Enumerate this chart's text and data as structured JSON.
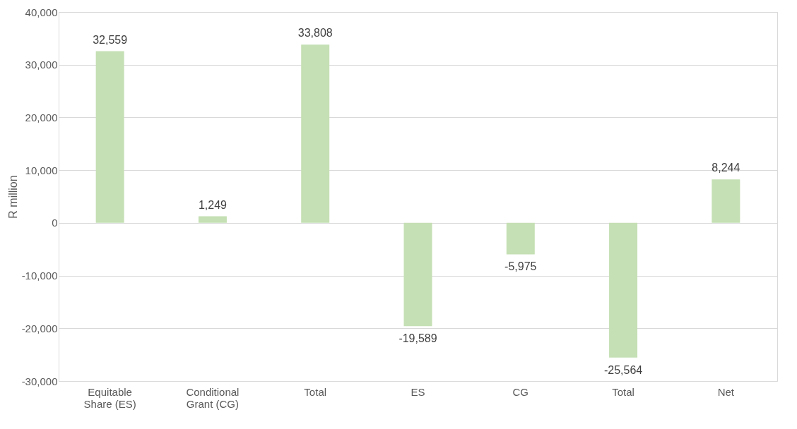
{
  "chart_data": {
    "type": "bar",
    "ylabel": "R million",
    "categories": [
      "Equitable Share (ES)",
      "Conditional Grant (CG)",
      "Total",
      "ES",
      "CG",
      "Total",
      "Net"
    ],
    "values": [
      32559,
      1249,
      33808,
      -19589,
      -5975,
      -25564,
      8244
    ],
    "value_labels": [
      "32,559",
      "1,249",
      "33,808",
      "-19,589",
      "-5,975",
      "-25,564",
      "8,244"
    ],
    "color": "#c5e0b4",
    "ylim": [
      -30000,
      40000
    ],
    "yticks": [
      {
        "value": -30000,
        "label": "-30,000"
      },
      {
        "value": -20000,
        "label": "-20,000"
      },
      {
        "value": -10000,
        "label": "-10,000"
      },
      0,
      {
        "value": 10000,
        "label": "10,000"
      },
      {
        "value": 20000,
        "label": "20,000"
      },
      {
        "value": 30000,
        "label": "30,000"
      },
      {
        "value": 40000,
        "label": "40,000"
      }
    ],
    "grid": "y"
  }
}
